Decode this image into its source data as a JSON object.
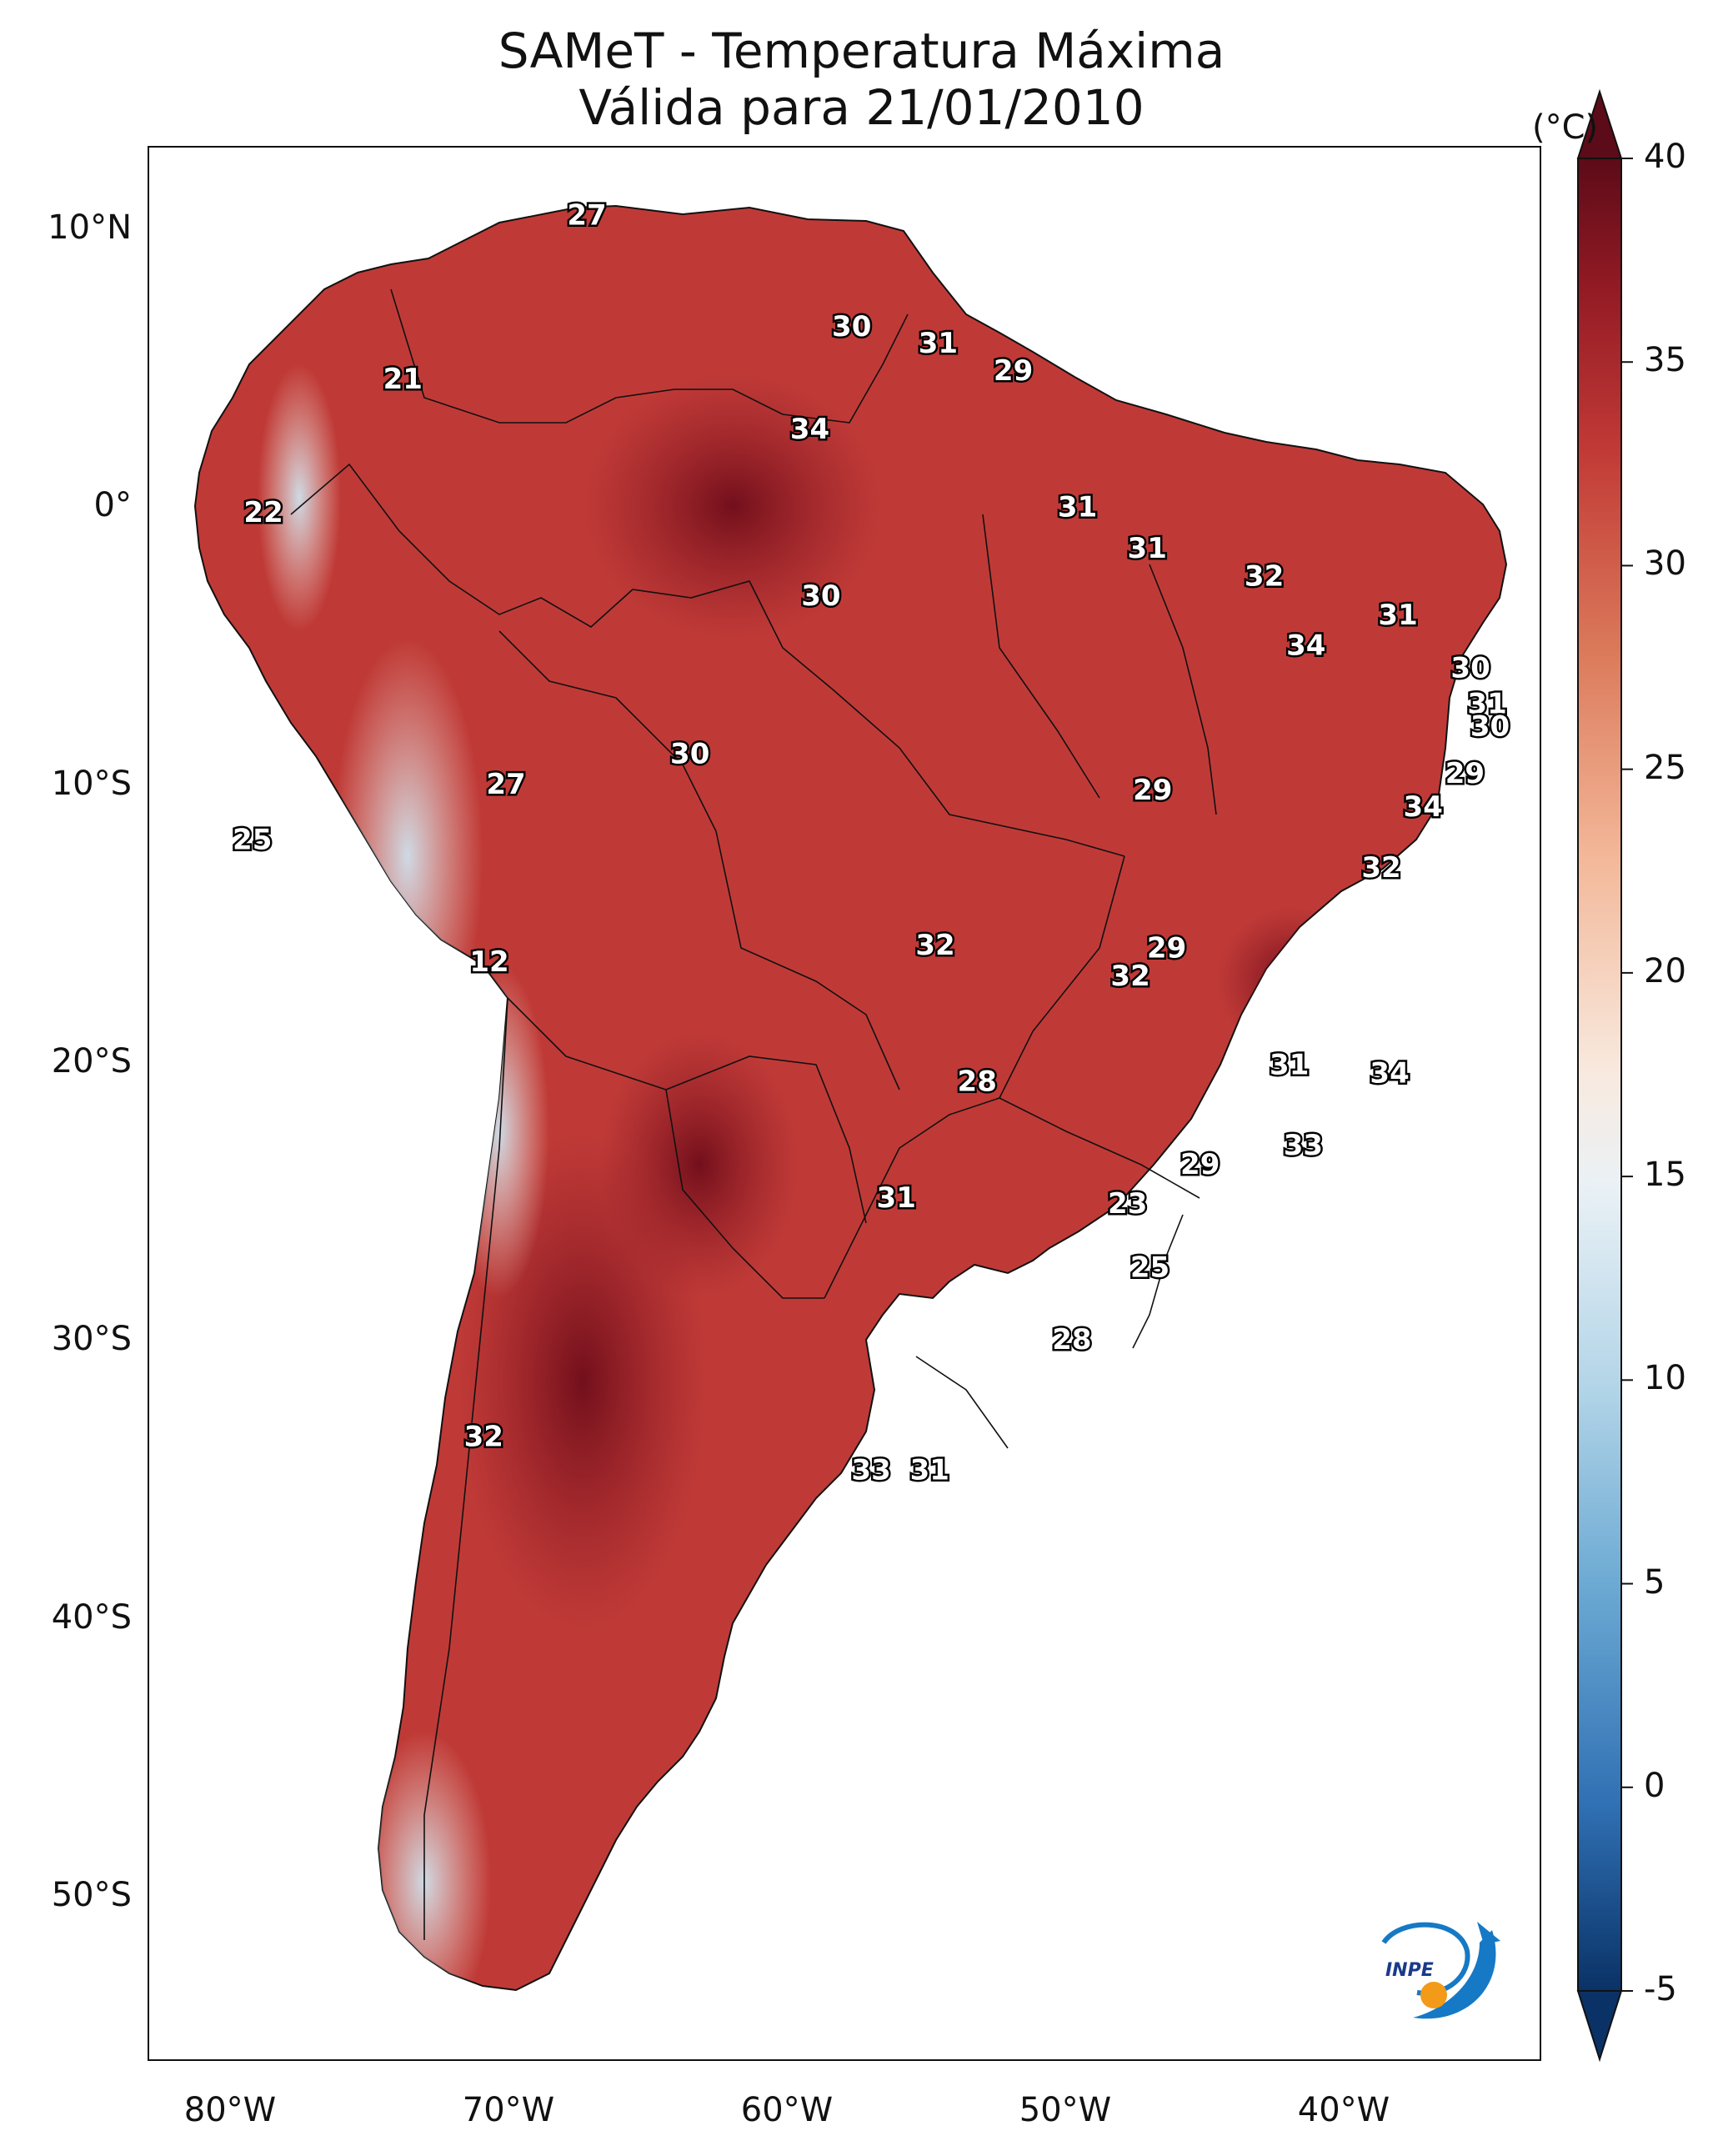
{
  "title": {
    "line1": "SAMeT - Temperatura Máxima",
    "line2": "Válida para 21/01/2010"
  },
  "colorbar": {
    "unit": "(°C)",
    "ticks": [
      "40",
      "35",
      "30",
      "25",
      "20",
      "15",
      "10",
      "5",
      "0",
      "-5"
    ],
    "min": -5,
    "max": 40,
    "colors": [
      "#0a3266",
      "#2f6fb3",
      "#6ba9d3",
      "#b3d5e8",
      "#eaf1f5",
      "#f8eadf",
      "#f3b798",
      "#db7a5b",
      "#c23a36",
      "#921a24",
      "#5c0b18"
    ]
  },
  "axes": {
    "lat_labels": [
      "10°N",
      "0°",
      "10°S",
      "20°S",
      "30°S",
      "40°S",
      "50°S"
    ],
    "lon_labels": [
      "80°W",
      "70°W",
      "60°W",
      "50°W",
      "40°W"
    ],
    "lat_range": [
      -56,
      13
    ],
    "lon_range": [
      -83,
      -33
    ]
  },
  "map_values": [
    {
      "text": "27",
      "lon": -67.3,
      "lat": 10.5
    },
    {
      "text": "30",
      "lon": -57.8,
      "lat": 6.5
    },
    {
      "text": "31",
      "lon": -54.7,
      "lat": 5.9
    },
    {
      "text": "29",
      "lon": -52.0,
      "lat": 4.9
    },
    {
      "text": "21",
      "lon": -73.9,
      "lat": 4.6
    },
    {
      "text": "34",
      "lon": -59.3,
      "lat": 2.8
    },
    {
      "text": "31",
      "lon": -49.7,
      "lat": 0.0
    },
    {
      "text": "22",
      "lon": -78.9,
      "lat": -0.2
    },
    {
      "text": "31",
      "lon": -47.2,
      "lat": -1.5
    },
    {
      "text": "32",
      "lon": -43.0,
      "lat": -2.5
    },
    {
      "text": "30",
      "lon": -58.9,
      "lat": -3.2
    },
    {
      "text": "31",
      "lon": -38.2,
      "lat": -3.9
    },
    {
      "text": "34",
      "lon": -41.5,
      "lat": -5.0
    },
    {
      "text": "30",
      "lon": -35.6,
      "lat": -5.8
    },
    {
      "text": "31",
      "lon": -35.0,
      "lat": -7.1
    },
    {
      "text": "30",
      "lon": -34.9,
      "lat": -7.9
    },
    {
      "text": "30",
      "lon": -63.6,
      "lat": -8.9
    },
    {
      "text": "29",
      "lon": -35.8,
      "lat": -9.6
    },
    {
      "text": "27",
      "lon": -70.2,
      "lat": -10.0
    },
    {
      "text": "29",
      "lon": -47.0,
      "lat": -10.2
    },
    {
      "text": "34",
      "lon": -37.3,
      "lat": -10.8
    },
    {
      "text": "25",
      "lon": -79.3,
      "lat": -12.0
    },
    {
      "text": "32",
      "lon": -38.8,
      "lat": -13.0
    },
    {
      "text": "32",
      "lon": -54.8,
      "lat": -15.8
    },
    {
      "text": "29",
      "lon": -46.5,
      "lat": -15.9
    },
    {
      "text": "12",
      "lon": -70.8,
      "lat": -16.4
    },
    {
      "text": "32",
      "lon": -47.8,
      "lat": -16.9
    },
    {
      "text": "31",
      "lon": -42.1,
      "lat": -20.1
    },
    {
      "text": "34",
      "lon": -38.5,
      "lat": -20.4
    },
    {
      "text": "28",
      "lon": -53.3,
      "lat": -20.7
    },
    {
      "text": "33",
      "lon": -41.6,
      "lat": -23.0
    },
    {
      "text": "29",
      "lon": -45.3,
      "lat": -23.7
    },
    {
      "text": "31",
      "lon": -56.2,
      "lat": -24.9
    },
    {
      "text": "23",
      "lon": -47.9,
      "lat": -25.1
    },
    {
      "text": "25",
      "lon": -47.1,
      "lat": -27.4
    },
    {
      "text": "28",
      "lon": -49.9,
      "lat": -30.0
    },
    {
      "text": "32",
      "lon": -71.0,
      "lat": -33.5
    },
    {
      "text": "33",
      "lon": -57.1,
      "lat": -34.7
    },
    {
      "text": "31",
      "lon": -55.0,
      "lat": -34.7
    }
  ],
  "logo": {
    "text": "INPE"
  }
}
